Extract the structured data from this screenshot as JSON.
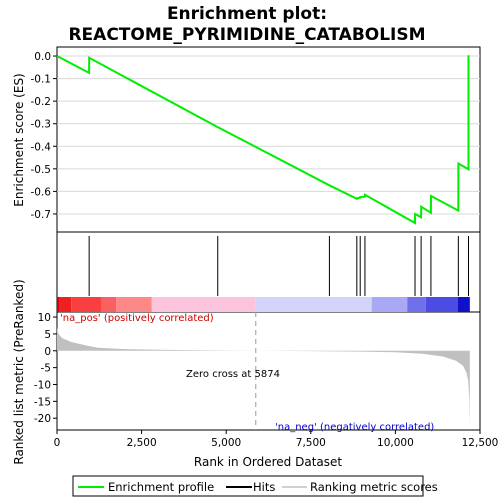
{
  "chart_data": {
    "type": "line",
    "title_line1": "Enrichment plot:",
    "title_line2": "REACTOME_PYRIMIDINE_CATABOLISM",
    "top_panel": {
      "ylabel": "Enrichment score (ES)",
      "ylim": [
        -0.78,
        0.04
      ],
      "yticks": [
        0.0,
        -0.1,
        -0.2,
        -0.3,
        -0.4,
        -0.5,
        -0.6,
        -0.7
      ],
      "ytick_labels": [
        "0.0",
        "-0.1",
        "-0.2",
        "-0.3",
        "-0.4",
        "-0.5",
        "-0.6",
        "-0.7"
      ],
      "series": [
        {
          "name": "Enrichment profile",
          "color": "#00ee00",
          "x": [
            0,
            950,
            951,
            4750,
            8050,
            8860,
            8861,
            8960,
            8961,
            9100,
            9101,
            10580,
            10581,
            10760,
            10761,
            11050,
            11051,
            11860,
            11861,
            12160,
            12161
          ],
          "y": [
            0.0,
            -0.075,
            -0.008,
            -0.315,
            -0.573,
            -0.633,
            -0.63,
            -0.628,
            -0.625,
            -0.623,
            -0.615,
            -0.74,
            -0.7,
            -0.715,
            -0.668,
            -0.695,
            -0.62,
            -0.685,
            -0.477,
            -0.502,
            0.003
          ]
        }
      ]
    },
    "hits": {
      "name": "Hits",
      "x": [
        950,
        4750,
        8050,
        8860,
        8960,
        9100,
        10580,
        10760,
        11050,
        11860,
        12160
      ]
    },
    "bottom_panel": {
      "ylabel": "Ranked list metric (PreRanked)",
      "ylim": [
        -23.5,
        11.5
      ],
      "yticks": [
        10,
        5,
        0,
        -5,
        -10,
        -15,
        -20
      ],
      "ytick_labels": [
        "10",
        "5",
        "0",
        "-5",
        "-10",
        "-15",
        "-20"
      ],
      "series": [
        {
          "name": "Ranking metric scores",
          "color": "#c0c0c0",
          "x": [
            0,
            40,
            150,
            400,
            800,
            1200,
            2000,
            3000,
            4500,
            5874,
            7500,
            9000,
            10000,
            10800,
            11400,
            11800,
            12000,
            12100,
            12150,
            12180,
            12199
          ],
          "y": [
            6.8,
            5.0,
            3.8,
            2.7,
            1.7,
            0.9,
            0.5,
            0.3,
            0.1,
            0.0,
            -0.1,
            -0.25,
            -0.45,
            -0.9,
            -1.7,
            -3.0,
            -4.5,
            -6.5,
            -9.0,
            -14.0,
            -22.5
          ]
        }
      ],
      "zero_cross_label": "Zero cross at 5874",
      "zero_cross_x": 5874,
      "pos_label": "'na_pos' (positively correlated)",
      "neg_label": "'na_neg' (negatively correlated)",
      "pos_color": "#cc0000",
      "neg_color": "#0000cc"
    },
    "color_bar": {
      "segments": [
        {
          "x0": 0,
          "x1": 80,
          "color": "#dd0000"
        },
        {
          "x0": 80,
          "x1": 420,
          "color": "#f02020"
        },
        {
          "x0": 420,
          "x1": 1300,
          "color": "#f84040"
        },
        {
          "x0": 1300,
          "x1": 1750,
          "color": "#fa6060"
        },
        {
          "x0": 1750,
          "x1": 2800,
          "color": "#fc8888"
        },
        {
          "x0": 2800,
          "x1": 5874,
          "color": "#fcc4dc"
        },
        {
          "x0": 5874,
          "x1": 9300,
          "color": "#d4d4fa"
        },
        {
          "x0": 9300,
          "x1": 10350,
          "color": "#a8a8f4"
        },
        {
          "x0": 10350,
          "x1": 10900,
          "color": "#7070ec"
        },
        {
          "x0": 10900,
          "x1": 11850,
          "color": "#4c4ce4"
        },
        {
          "x0": 11850,
          "x1": 12200,
          "color": "#1010c8"
        }
      ]
    },
    "x_axis": {
      "xlabel": "Rank in Ordered Dataset",
      "xlim": [
        0,
        12500
      ],
      "xticks": [
        0,
        2500,
        5000,
        7500,
        10000,
        12500
      ],
      "xtick_labels": [
        "0",
        "2,500",
        "5,000",
        "7,500",
        "10,000",
        "12,500"
      ]
    },
    "legend": {
      "placement": "bottom",
      "items": [
        {
          "label": "Enrichment profile",
          "color": "#00ee00"
        },
        {
          "label": "Hits",
          "color": "#000000"
        },
        {
          "label": "Ranking metric scores",
          "color": "#c0c0c0"
        }
      ]
    }
  }
}
